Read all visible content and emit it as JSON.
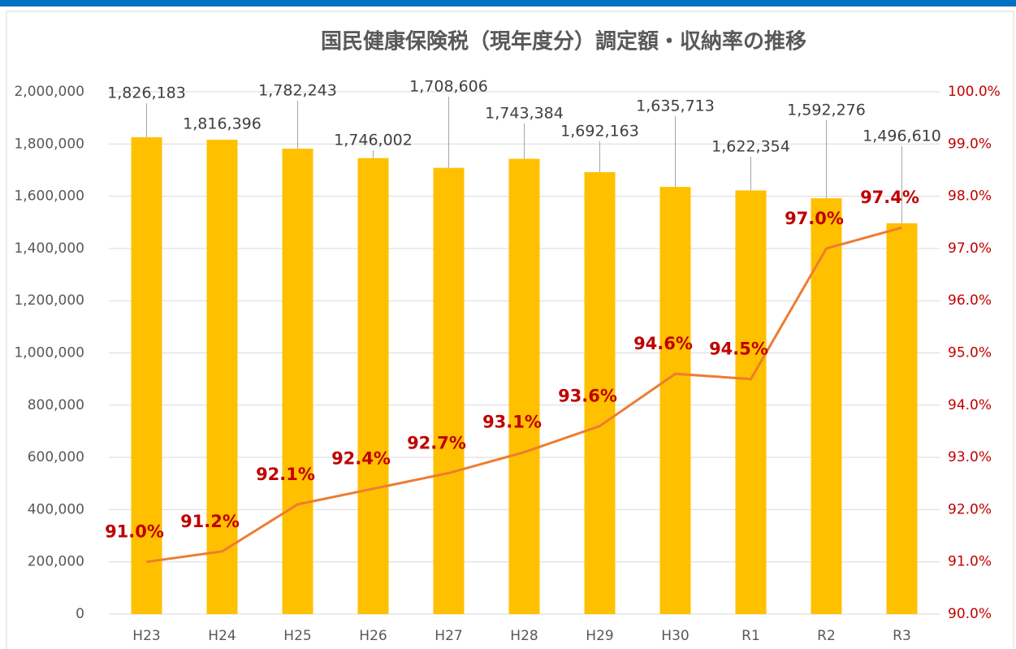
{
  "chart_data": {
    "type": "bar_line",
    "title": "国民健康保険税（現年度分）調定額・収納率の推移",
    "categories": [
      "H23",
      "H24",
      "H25",
      "H26",
      "H27",
      "H28",
      "H29",
      "H30",
      "R1",
      "R2",
      "R3"
    ],
    "series": [
      {
        "type": "bar",
        "color": "#FFC000",
        "values": [
          1826183,
          1816396,
          1782243,
          1746002,
          1708606,
          1743384,
          1692163,
          1635713,
          1622354,
          1592276,
          1496610
        ],
        "value_labels": [
          "1,826,183",
          "1,816,396",
          "1,782,243",
          "1,746,002",
          "1,708,606",
          "1,743,384",
          "1,692,163",
          "1,635,713",
          "1,622,354",
          "1,592,276",
          "1,496,610"
        ]
      },
      {
        "type": "line",
        "axis": "y2",
        "color": "#ED7D31",
        "label_color": "#C00000",
        "values": [
          91.0,
          91.2,
          92.1,
          92.4,
          92.7,
          93.1,
          93.6,
          94.6,
          94.5,
          97.0,
          97.4
        ],
        "value_labels": [
          "91.0%",
          "91.2%",
          "92.1%",
          "92.4%",
          "92.7%",
          "93.1%",
          "93.6%",
          "94.6%",
          "94.5%",
          "97.0%",
          "97.4%"
        ]
      }
    ],
    "ylim": [
      0,
      2000000
    ],
    "yticks": [
      0,
      {
        "value": 200000,
        "label": "200,000"
      },
      {
        "value": 400000,
        "label": "400,000"
      },
      {
        "value": 600000,
        "label": "600,000"
      },
      {
        "value": 800000,
        "label": "800,000"
      },
      {
        "value": 1000000,
        "label": "1,000,000"
      },
      {
        "value": 1200000,
        "label": "1,200,000"
      },
      {
        "value": 1400000,
        "label": "1,400,000"
      },
      {
        "value": 1600000,
        "label": "1,600,000"
      },
      {
        "value": 1800000,
        "label": "1,800,000"
      },
      {
        "value": 2000000,
        "label": "2,000,000"
      }
    ],
    "y2lim": [
      90,
      100
    ],
    "y2ticks": [
      {
        "value": 90,
        "label": "90.0%"
      },
      {
        "value": 91,
        "label": "91.0%"
      },
      {
        "value": 92,
        "label": "92.0%"
      },
      {
        "value": 93,
        "label": "93.0%"
      },
      {
        "value": 94,
        "label": "94.0%"
      },
      {
        "value": 95,
        "label": "95.0%"
      },
      {
        "value": 96,
        "label": "96.0%"
      },
      {
        "value": 97,
        "label": "97.0%"
      },
      {
        "value": 98,
        "label": "98.0%"
      },
      {
        "value": 99,
        "label": "99.0%"
      },
      {
        "value": 100,
        "label": "100.0%"
      }
    ],
    "grid": true
  }
}
